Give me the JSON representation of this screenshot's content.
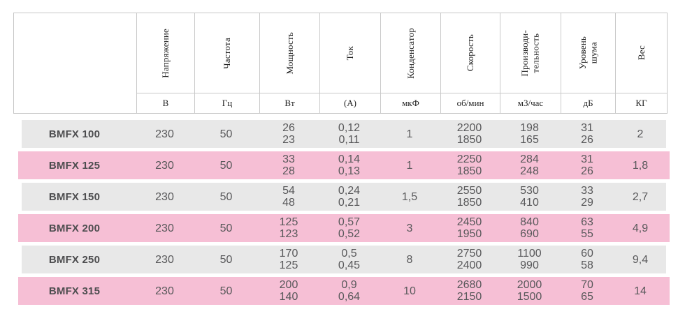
{
  "table": {
    "columns": [
      {
        "name": "Напряжение",
        "unit": "В"
      },
      {
        "name": "Частота",
        "unit": "Гц"
      },
      {
        "name": "Мощность",
        "unit": "Вт"
      },
      {
        "name": "Ток",
        "unit": "(А)"
      },
      {
        "name": "Конденсатор",
        "unit": "мкФ"
      },
      {
        "name": "Скорость",
        "unit": "об/мин"
      },
      {
        "name": "Производи-\nтельность",
        "unit": "м3/час"
      },
      {
        "name": "Уровень\nшума",
        "unit": "дБ"
      },
      {
        "name": "Вес",
        "unit": "КГ"
      }
    ],
    "rows": [
      {
        "model": "BMFX 100",
        "voltage": "230",
        "frequency": "50",
        "power": [
          "26",
          "23"
        ],
        "current": [
          "0,12",
          "0,11"
        ],
        "capacitor": "1",
        "speed": [
          "2200",
          "1850"
        ],
        "capacity": [
          "198",
          "165"
        ],
        "noise": [
          "31",
          "26"
        ],
        "weight": "2",
        "highlighted": false
      },
      {
        "model": "BMFX 125",
        "voltage": "230",
        "frequency": "50",
        "power": [
          "33",
          "28"
        ],
        "current": [
          "0,14",
          "0,13"
        ],
        "capacitor": "1",
        "speed": [
          "2250",
          "1850"
        ],
        "capacity": [
          "284",
          "248"
        ],
        "noise": [
          "31",
          "26"
        ],
        "weight": "1,8",
        "highlighted": true
      },
      {
        "model": "BMFX 150",
        "voltage": "230",
        "frequency": "50",
        "power": [
          "54",
          "48"
        ],
        "current": [
          "0,24",
          "0,21"
        ],
        "capacitor": "1,5",
        "speed": [
          "2550",
          "1850"
        ],
        "capacity": [
          "530",
          "410"
        ],
        "noise": [
          "33",
          "29"
        ],
        "weight": "2,7",
        "highlighted": false
      },
      {
        "model": "BMFX 200",
        "voltage": "230",
        "frequency": "50",
        "power": [
          "125",
          "123"
        ],
        "current": [
          "0,57",
          "0,52"
        ],
        "capacitor": "3",
        "speed": [
          "2450",
          "1950"
        ],
        "capacity": [
          "840",
          "690"
        ],
        "noise": [
          "63",
          "55"
        ],
        "weight": "4,9",
        "highlighted": true
      },
      {
        "model": "BMFX 250",
        "voltage": "230",
        "frequency": "50",
        "power": [
          "170",
          "125"
        ],
        "current": [
          "0,5",
          "0,45"
        ],
        "capacitor": "8",
        "speed": [
          "2750",
          "2400"
        ],
        "capacity": [
          "1100",
          "990"
        ],
        "noise": [
          "60",
          "58"
        ],
        "weight": "9,4",
        "highlighted": false
      },
      {
        "model": "BMFX 315",
        "voltage": "230",
        "frequency": "50",
        "power": [
          "200",
          "140"
        ],
        "current": [
          "0,9",
          "0,64"
        ],
        "capacitor": "10",
        "speed": [
          "2680",
          "2150"
        ],
        "capacity": [
          "2000",
          "1500"
        ],
        "noise": [
          "70",
          "65"
        ],
        "weight": "14",
        "highlighted": true
      }
    ]
  },
  "colors": {
    "row_default_bg": "#e8e8e8",
    "row_highlight_bg": "#f6bfd5",
    "border": "#c9c9c9",
    "header_text": "#1f1f1f",
    "data_text": "#58585a"
  }
}
